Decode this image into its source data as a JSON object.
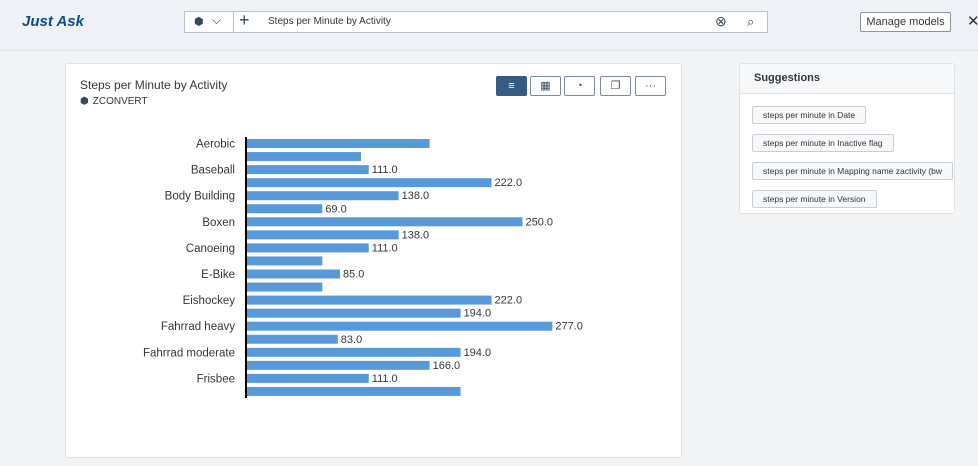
{
  "header": {
    "app_title": "Just Ask",
    "query_text": "Steps per Minute by Activity",
    "manage_models_label": "Manage models",
    "close_glyph": "✕",
    "plus_glyph": "+",
    "model_icon_glyph": "⬢",
    "chevron_glyph": "⌵",
    "clear_glyph": "⊗",
    "search_glyph": "⌕"
  },
  "chart_card": {
    "title": "Steps per Minute by Activity",
    "source": "ZCONVERT",
    "toolbar": [
      {
        "name": "bar-chart-view-button",
        "glyph": "≡",
        "active": true
      },
      {
        "name": "table-view-button",
        "glyph": "▦",
        "active": false
      },
      {
        "name": "explore-button",
        "glyph": "◔",
        "active": false
      },
      {
        "name": "copy-button",
        "glyph": "❐",
        "active": false
      },
      {
        "name": "more-options-button",
        "glyph": "···",
        "active": false
      }
    ]
  },
  "chart_data": {
    "type": "bar",
    "orientation": "horizontal",
    "categories": [
      "Aerobic",
      "Baseball",
      "Body Building",
      "Boxen",
      "Canoeing",
      "E-Bike",
      "Eishockey",
      "Fahrrad heavy",
      "Fahrrad moderate",
      "Frisbee"
    ],
    "bars": [
      {
        "category": "Aerobic",
        "value": 166.0,
        "label": ""
      },
      {
        "category": "Aerobic",
        "value": 104.0,
        "label": ""
      },
      {
        "category": "Baseball",
        "value": 111.0,
        "label": "111.0"
      },
      {
        "category": "Baseball",
        "value": 222.0,
        "label": "222.0"
      },
      {
        "category": "Body Building",
        "value": 138.0,
        "label": "138.0"
      },
      {
        "category": "Body Building",
        "value": 69.0,
        "label": "69.0"
      },
      {
        "category": "Boxen",
        "value": 250.0,
        "label": "250.0"
      },
      {
        "category": "Boxen",
        "value": 138.0,
        "label": "138.0"
      },
      {
        "category": "Canoeing",
        "value": 111.0,
        "label": "111.0"
      },
      {
        "category": "Canoeing",
        "value": 69.0,
        "label": ""
      },
      {
        "category": "E-Bike",
        "value": 85.0,
        "label": "85.0"
      },
      {
        "category": "E-Bike",
        "value": 69.0,
        "label": ""
      },
      {
        "category": "Eishockey",
        "value": 222.0,
        "label": "222.0"
      },
      {
        "category": "Eishockey",
        "value": 194.0,
        "label": "194.0"
      },
      {
        "category": "Fahrrad heavy",
        "value": 277.0,
        "label": "277.0"
      },
      {
        "category": "Fahrrad heavy",
        "value": 83.0,
        "label": "83.0"
      },
      {
        "category": "Fahrrad moderate",
        "value": 194.0,
        "label": "194.0"
      },
      {
        "category": "Fahrrad moderate",
        "value": 166.0,
        "label": "166.0"
      },
      {
        "category": "Frisbee",
        "value": 111.0,
        "label": "111.0"
      },
      {
        "category": "Frisbee",
        "value": 194.0,
        "label": ""
      }
    ],
    "bar_color": "#5899da",
    "title": "",
    "xlabel": "",
    "ylabel": "",
    "xlim": [
      0,
      277
    ],
    "grid": false,
    "legend": "none"
  },
  "suggestions": {
    "title": "Suggestions",
    "items": [
      "steps per minute in Date",
      "steps per minute in Inactive flag",
      "steps per minute in Mapping name zactivity (bw",
      "steps per minute in Version"
    ]
  }
}
